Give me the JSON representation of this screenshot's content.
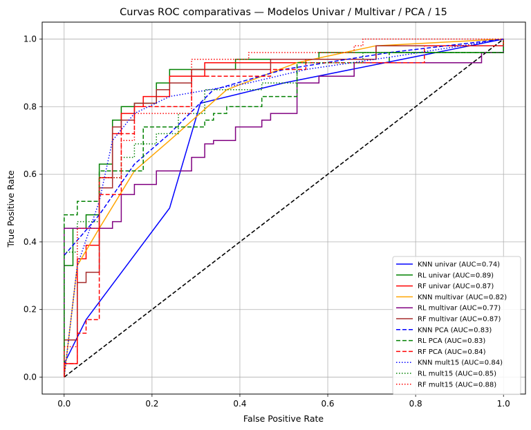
{
  "chart_data": {
    "type": "line",
    "title": "Curvas ROC comparativas — Modelos Univar / Multivar / PCA / 15",
    "xlabel": "False Positive Rate",
    "ylabel": "True Positive Rate",
    "xlim": [
      -0.05,
      1.05
    ],
    "ylim": [
      -0.05,
      1.05
    ],
    "xticks": [
      "0.0",
      "0.2",
      "0.4",
      "0.6",
      "0.8",
      "1.0"
    ],
    "yticks": [
      "0.0",
      "0.2",
      "0.4",
      "0.6",
      "0.8",
      "1.0"
    ],
    "grid": true,
    "legend_position": "lower-right",
    "series": [
      {
        "name": "KNN univar (AUC=0.74)",
        "color": "#0000ff",
        "dash": "solid",
        "points": [
          [
            0,
            0
          ],
          [
            0,
            0.04
          ],
          [
            0.05,
            0.17
          ],
          [
            0.24,
            0.5
          ],
          [
            0.31,
            0.81
          ],
          [
            0.5,
            0.87
          ],
          [
            1,
            1
          ]
        ]
      },
      {
        "name": "RL univar (AUC=0.89)",
        "color": "#008000",
        "dash": "solid",
        "points": [
          [
            0,
            0
          ],
          [
            0,
            0.33
          ],
          [
            0.02,
            0.33
          ],
          [
            0.02,
            0.44
          ],
          [
            0.05,
            0.44
          ],
          [
            0.05,
            0.48
          ],
          [
            0.08,
            0.48
          ],
          [
            0.08,
            0.63
          ],
          [
            0.11,
            0.63
          ],
          [
            0.11,
            0.76
          ],
          [
            0.13,
            0.76
          ],
          [
            0.13,
            0.8
          ],
          [
            0.16,
            0.8
          ],
          [
            0.16,
            0.81
          ],
          [
            0.21,
            0.81
          ],
          [
            0.21,
            0.87
          ],
          [
            0.24,
            0.87
          ],
          [
            0.24,
            0.91
          ],
          [
            0.39,
            0.91
          ],
          [
            0.39,
            0.94
          ],
          [
            0.58,
            0.94
          ],
          [
            0.58,
            0.96
          ],
          [
            1,
            0.96
          ],
          [
            1,
            1
          ]
        ]
      },
      {
        "name": "RF univar (AUC=0.87)",
        "color": "#ff0000",
        "dash": "solid",
        "points": [
          [
            0,
            0
          ],
          [
            0,
            0.04
          ],
          [
            0.03,
            0.04
          ],
          [
            0.03,
            0.35
          ],
          [
            0.05,
            0.35
          ],
          [
            0.05,
            0.39
          ],
          [
            0.08,
            0.39
          ],
          [
            0.08,
            0.59
          ],
          [
            0.11,
            0.59
          ],
          [
            0.11,
            0.72
          ],
          [
            0.13,
            0.72
          ],
          [
            0.13,
            0.78
          ],
          [
            0.16,
            0.78
          ],
          [
            0.16,
            0.8
          ],
          [
            0.18,
            0.8
          ],
          [
            0.18,
            0.83
          ],
          [
            0.24,
            0.83
          ],
          [
            0.24,
            0.89
          ],
          [
            0.32,
            0.89
          ],
          [
            0.32,
            0.93
          ],
          [
            0.55,
            0.93
          ],
          [
            0.55,
            0.94
          ],
          [
            0.71,
            0.94
          ],
          [
            0.71,
            0.98
          ],
          [
            1,
            0.98
          ],
          [
            1,
            1
          ]
        ]
      },
      {
        "name": "KNN multivar (AUC=0.82)",
        "color": "#ffa500",
        "dash": "solid",
        "points": [
          [
            0,
            0
          ],
          [
            0.03,
            0.33
          ],
          [
            0.08,
            0.44
          ],
          [
            0.16,
            0.61
          ],
          [
            0.24,
            0.7
          ],
          [
            0.37,
            0.85
          ],
          [
            0.53,
            0.93
          ],
          [
            0.71,
            0.98
          ],
          [
            1,
            1
          ]
        ]
      },
      {
        "name": "RL multivar (AUC=0.77)",
        "color": "#800080",
        "dash": "solid",
        "points": [
          [
            0,
            0
          ],
          [
            0,
            0.44
          ],
          [
            0.11,
            0.44
          ],
          [
            0.11,
            0.46
          ],
          [
            0.13,
            0.46
          ],
          [
            0.13,
            0.54
          ],
          [
            0.16,
            0.54
          ],
          [
            0.16,
            0.57
          ],
          [
            0.21,
            0.57
          ],
          [
            0.21,
            0.61
          ],
          [
            0.29,
            0.61
          ],
          [
            0.29,
            0.65
          ],
          [
            0.32,
            0.65
          ],
          [
            0.32,
            0.69
          ],
          [
            0.34,
            0.69
          ],
          [
            0.34,
            0.7
          ],
          [
            0.39,
            0.7
          ],
          [
            0.39,
            0.74
          ],
          [
            0.45,
            0.74
          ],
          [
            0.45,
            0.76
          ],
          [
            0.47,
            0.76
          ],
          [
            0.47,
            0.78
          ],
          [
            0.53,
            0.78
          ],
          [
            0.53,
            0.87
          ],
          [
            0.58,
            0.87
          ],
          [
            0.58,
            0.89
          ],
          [
            0.66,
            0.89
          ],
          [
            0.66,
            0.93
          ],
          [
            0.95,
            0.93
          ],
          [
            0.95,
            0.96
          ],
          [
            1,
            0.96
          ],
          [
            1,
            1
          ]
        ]
      },
      {
        "name": "RF multivar (AUC=0.87)",
        "color": "#a52a2a",
        "dash": "solid",
        "points": [
          [
            0,
            0
          ],
          [
            0,
            0.11
          ],
          [
            0.03,
            0.11
          ],
          [
            0.03,
            0.28
          ],
          [
            0.05,
            0.28
          ],
          [
            0.05,
            0.31
          ],
          [
            0.08,
            0.31
          ],
          [
            0.08,
            0.56
          ],
          [
            0.11,
            0.56
          ],
          [
            0.11,
            0.74
          ],
          [
            0.13,
            0.74
          ],
          [
            0.13,
            0.76
          ],
          [
            0.16,
            0.76
          ],
          [
            0.16,
            0.81
          ],
          [
            0.21,
            0.81
          ],
          [
            0.21,
            0.85
          ],
          [
            0.24,
            0.85
          ],
          [
            0.24,
            0.87
          ],
          [
            0.29,
            0.87
          ],
          [
            0.29,
            0.91
          ],
          [
            0.47,
            0.91
          ],
          [
            0.47,
            0.94
          ],
          [
            0.71,
            0.94
          ],
          [
            0.71,
            0.98
          ],
          [
            1,
            0.98
          ],
          [
            1,
            1
          ]
        ]
      },
      {
        "name": "KNN PCA (AUC=0.83)",
        "color": "#0000ff",
        "dash": "dashed",
        "points": [
          [
            0,
            0.36
          ],
          [
            0.08,
            0.48
          ],
          [
            0.16,
            0.63
          ],
          [
            0.24,
            0.72
          ],
          [
            0.34,
            0.85
          ],
          [
            0.5,
            0.91
          ],
          [
            0.74,
            0.96
          ],
          [
            1,
            1
          ]
        ]
      },
      {
        "name": "RL PCA (AUC=0.83)",
        "color": "#008000",
        "dash": "dashed",
        "points": [
          [
            0,
            0
          ],
          [
            0,
            0.48
          ],
          [
            0.03,
            0.48
          ],
          [
            0.03,
            0.52
          ],
          [
            0.08,
            0.52
          ],
          [
            0.08,
            0.61
          ],
          [
            0.18,
            0.61
          ],
          [
            0.18,
            0.74
          ],
          [
            0.32,
            0.74
          ],
          [
            0.32,
            0.76
          ],
          [
            0.34,
            0.76
          ],
          [
            0.34,
            0.78
          ],
          [
            0.37,
            0.78
          ],
          [
            0.37,
            0.8
          ],
          [
            0.45,
            0.8
          ],
          [
            0.45,
            0.83
          ],
          [
            0.53,
            0.83
          ],
          [
            0.53,
            0.93
          ],
          [
            0.74,
            0.93
          ],
          [
            0.74,
            0.96
          ],
          [
            1,
            0.96
          ],
          [
            1,
            1
          ]
        ]
      },
      {
        "name": "RF PCA (AUC=0.84)",
        "color": "#ff0000",
        "dash": "dashed",
        "points": [
          [
            0,
            0
          ],
          [
            0,
            0.04
          ],
          [
            0.03,
            0.04
          ],
          [
            0.03,
            0.13
          ],
          [
            0.05,
            0.13
          ],
          [
            0.05,
            0.17
          ],
          [
            0.08,
            0.17
          ],
          [
            0.08,
            0.54
          ],
          [
            0.13,
            0.54
          ],
          [
            0.13,
            0.72
          ],
          [
            0.16,
            0.72
          ],
          [
            0.16,
            0.8
          ],
          [
            0.29,
            0.8
          ],
          [
            0.29,
            0.89
          ],
          [
            0.47,
            0.89
          ],
          [
            0.47,
            0.91
          ],
          [
            0.55,
            0.91
          ],
          [
            0.55,
            0.93
          ],
          [
            0.82,
            0.93
          ],
          [
            0.82,
            0.98
          ],
          [
            1,
            0.98
          ],
          [
            1,
            1
          ]
        ]
      },
      {
        "name": "KNN mult15 (AUC=0.84)",
        "color": "#0000ff",
        "dash": "dotted",
        "points": [
          [
            0,
            0
          ],
          [
            0.03,
            0.33
          ],
          [
            0.08,
            0.52
          ],
          [
            0.11,
            0.7
          ],
          [
            0.16,
            0.78
          ],
          [
            0.24,
            0.83
          ],
          [
            0.42,
            0.87
          ],
          [
            0.55,
            0.91
          ],
          [
            0.76,
            0.95
          ],
          [
            1,
            1
          ]
        ]
      },
      {
        "name": "RL mult15 (AUC=0.85)",
        "color": "#008000",
        "dash": "dotted",
        "points": [
          [
            0,
            0
          ],
          [
            0,
            0.37
          ],
          [
            0.03,
            0.37
          ],
          [
            0.03,
            0.46
          ],
          [
            0.08,
            0.46
          ],
          [
            0.08,
            0.59
          ],
          [
            0.13,
            0.59
          ],
          [
            0.13,
            0.65
          ],
          [
            0.16,
            0.65
          ],
          [
            0.16,
            0.69
          ],
          [
            0.21,
            0.69
          ],
          [
            0.21,
            0.72
          ],
          [
            0.26,
            0.72
          ],
          [
            0.26,
            0.78
          ],
          [
            0.32,
            0.78
          ],
          [
            0.32,
            0.85
          ],
          [
            0.45,
            0.85
          ],
          [
            0.45,
            0.87
          ],
          [
            0.53,
            0.87
          ],
          [
            0.53,
            0.93
          ],
          [
            0.68,
            0.93
          ],
          [
            0.68,
            0.96
          ],
          [
            1,
            0.96
          ],
          [
            1,
            1
          ]
        ]
      },
      {
        "name": "RF mult15 (AUC=0.88)",
        "color": "#ff0000",
        "dash": "dotted",
        "points": [
          [
            0,
            0
          ],
          [
            0,
            0.09
          ],
          [
            0.03,
            0.09
          ],
          [
            0.03,
            0.44
          ],
          [
            0.08,
            0.44
          ],
          [
            0.08,
            0.59
          ],
          [
            0.13,
            0.59
          ],
          [
            0.13,
            0.7
          ],
          [
            0.16,
            0.7
          ],
          [
            0.16,
            0.78
          ],
          [
            0.29,
            0.78
          ],
          [
            0.29,
            0.94
          ],
          [
            0.42,
            0.94
          ],
          [
            0.42,
            0.96
          ],
          [
            0.66,
            0.96
          ],
          [
            0.66,
            0.98
          ],
          [
            0.68,
            0.98
          ],
          [
            0.68,
            1
          ],
          [
            1,
            1
          ]
        ]
      }
    ],
    "reference_line": {
      "color": "#000000",
      "dash": "dashed",
      "points": [
        [
          0,
          0
        ],
        [
          1,
          1
        ]
      ]
    }
  }
}
